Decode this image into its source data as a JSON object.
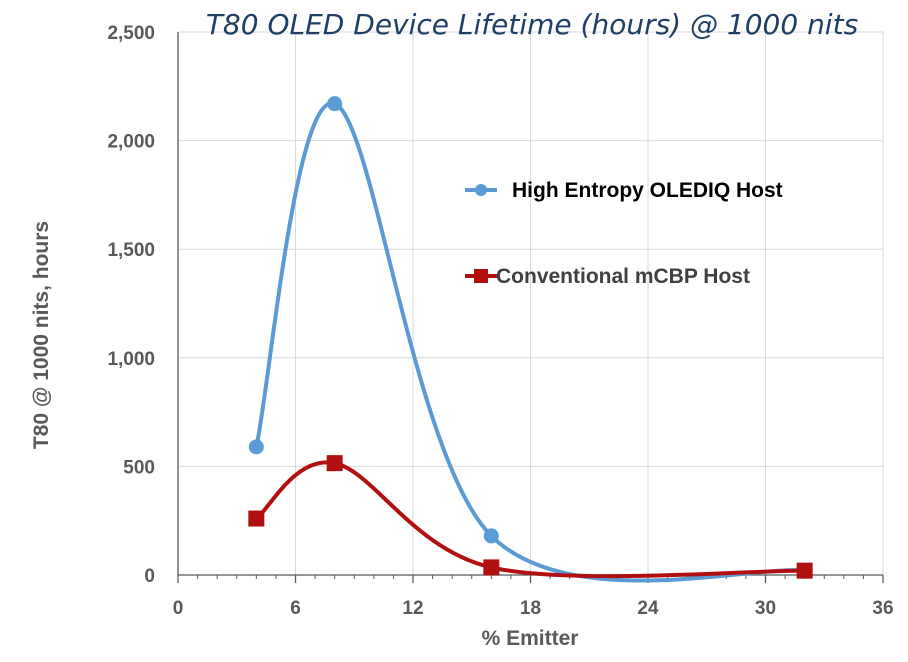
{
  "chart_data": {
    "type": "line",
    "title": "T80 OLED Device Lifetime (hours) @ 1000 nits",
    "xlabel": "% Emitter",
    "ylabel": "T80 @ 1000 nits, hours",
    "xlim": [
      0,
      36
    ],
    "ylim": [
      0,
      2500
    ],
    "xticks": [
      "0",
      "6",
      "12",
      "18",
      "24",
      "30",
      "36"
    ],
    "yticks": [
      "0",
      "500",
      "1,000",
      "1,500",
      "2,000",
      "2,500"
    ],
    "grid": true,
    "legend_position": "right",
    "series": [
      {
        "name": "High Entropy OLEDIQ Host",
        "color": "#5b9bd5",
        "marker": "circle",
        "x": [
          4,
          8,
          16,
          32
        ],
        "y": [
          590,
          2170,
          180,
          20
        ]
      },
      {
        "name": "Conventional mCBP Host",
        "color": "#b01010",
        "marker": "square",
        "x": [
          4,
          8,
          16,
          32
        ],
        "y": [
          260,
          515,
          35,
          20
        ]
      }
    ]
  }
}
